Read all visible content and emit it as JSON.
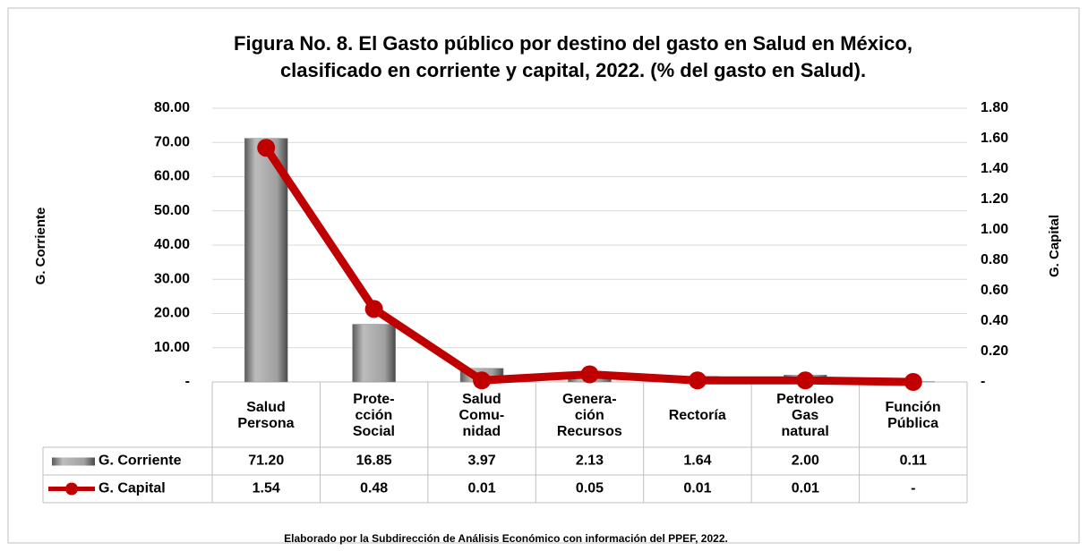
{
  "chart_data": {
    "type": "bar",
    "title": "Figura No. 8. El Gasto público por destino del gasto en Salud en México,",
    "subtitle": "clasificado en corriente y capital, 2022. (% del gasto en Salud).",
    "y_label": "G. Corriente",
    "y2_label": "G. Capital",
    "footer": "Elaborado por la Subdirección de Análisis Económico con información del  PPEF, 2022.",
    "categories": [
      "Salud\nPersona",
      "Prote-\ncción\nSocial",
      "Salud\nComu-\nnidad",
      "Genera-\nción\nRecursos",
      "Rectoría",
      "Petroleo\nGas\nnatural",
      "Función\nPública"
    ],
    "series": [
      {
        "name": "G. Corriente",
        "type": "bar",
        "color": "#808080",
        "values": [
          71.2,
          16.85,
          3.97,
          2.13,
          1.64,
          2.0,
          0.11
        ],
        "value_labels": [
          "71.20",
          "16.85",
          "3.97",
          "2.13",
          "1.64",
          "2.00",
          "0.11"
        ]
      },
      {
        "name": "G. Capital",
        "type": "line",
        "axis": "y2",
        "color": "#c00000",
        "values": [
          1.54,
          0.48,
          0.01,
          0.05,
          0.01,
          0.01,
          0
        ],
        "value_labels": [
          "1.54",
          "0.48",
          "0.01",
          "0.05",
          "0.01",
          "0.01",
          "-"
        ]
      }
    ],
    "ylim": [
      0,
      80
    ],
    "yticks": [
      {
        "value": 0,
        "label": "-"
      },
      {
        "value": 10,
        "label": "10.00"
      },
      {
        "value": 20,
        "label": "20.00"
      },
      {
        "value": 30,
        "label": "30.00"
      },
      {
        "value": 40,
        "label": "40.00"
      },
      {
        "value": 50,
        "label": "50.00"
      },
      {
        "value": 60,
        "label": "60.00"
      },
      {
        "value": 70,
        "label": "70.00"
      },
      {
        "value": 80,
        "label": "80.00"
      }
    ],
    "y2lim": [
      0,
      1.8
    ],
    "y2ticks": [
      {
        "value": 0,
        "label": "-"
      },
      {
        "value": 0.2,
        "label": "0.20"
      },
      {
        "value": 0.4,
        "label": "0.40"
      },
      {
        "value": 0.6,
        "label": "0.60"
      },
      {
        "value": 0.8,
        "label": "0.80"
      },
      {
        "value": 1.0,
        "label": "1.00"
      },
      {
        "value": 1.2,
        "label": "1.20"
      },
      {
        "value": 1.4,
        "label": "1.40"
      },
      {
        "value": 1.6,
        "label": "1.60"
      },
      {
        "value": 1.8,
        "label": "1.80"
      }
    ],
    "grid": true
  }
}
